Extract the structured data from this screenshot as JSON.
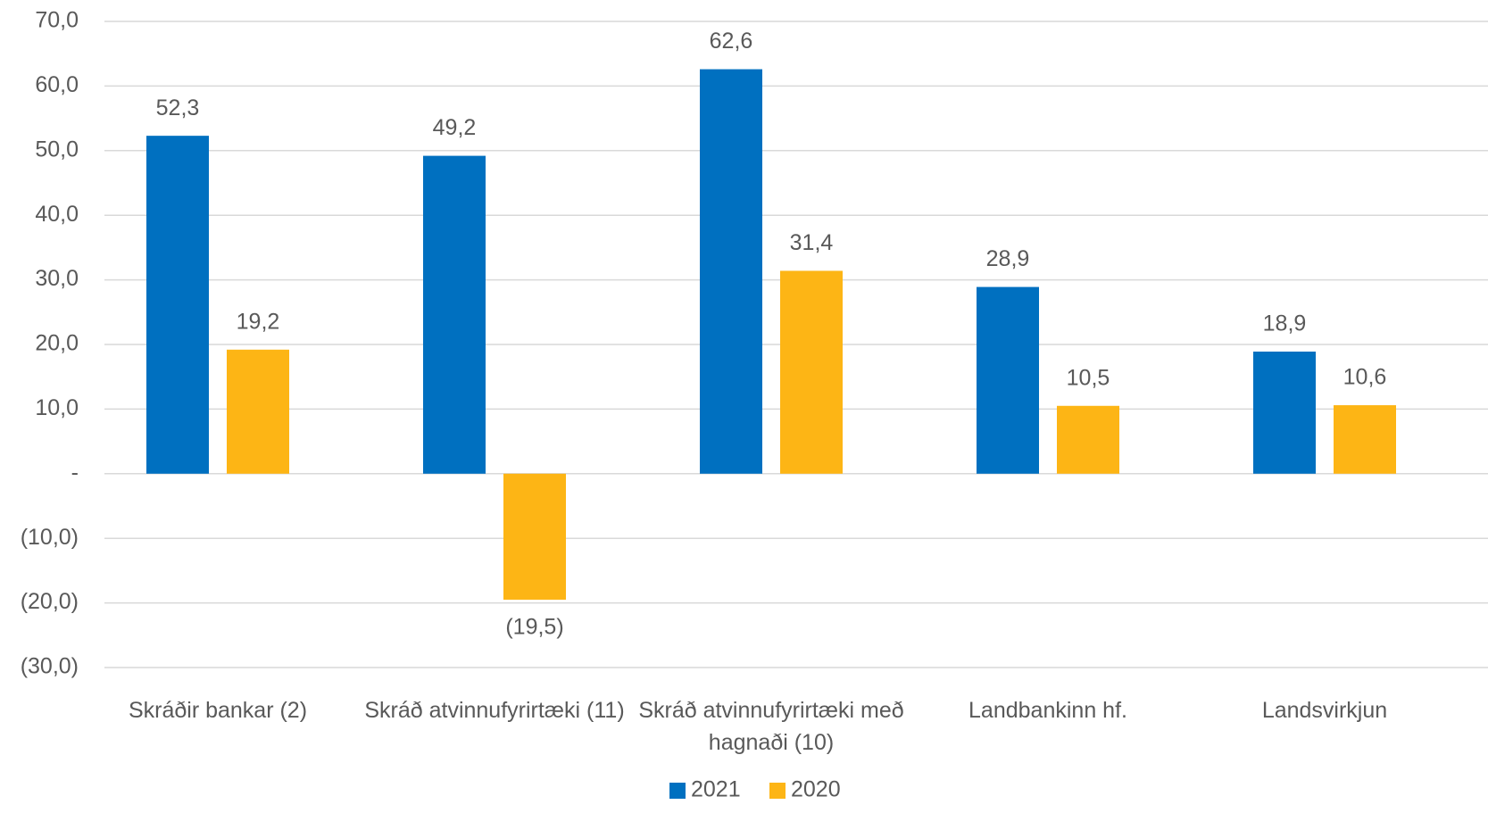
{
  "chart_data": {
    "type": "bar",
    "categories": [
      "Skráðir bankar (2)",
      "Skráð atvinnufyrirtæki (11)",
      "Skráð atvinnufyrirtæki með hagnaði (10)",
      "Landbankinn hf.",
      "Landsvirkjun"
    ],
    "series": [
      {
        "name": "2021",
        "color": "#0070C0",
        "values": [
          52.3,
          49.2,
          62.6,
          28.9,
          18.9
        ],
        "value_labels": [
          "52,3",
          "49,2",
          "62,6",
          "28,9",
          "18,9"
        ]
      },
      {
        "name": "2020",
        "color": "#FDB515",
        "values": [
          19.2,
          -19.5,
          31.4,
          10.5,
          10.6
        ],
        "value_labels": [
          "19,2",
          "(19,5)",
          "31,4",
          "10,5",
          "10,6"
        ]
      }
    ],
    "ylim": [
      -30,
      70
    ],
    "yticks": [
      {
        "value": -30,
        "label": "(30,0)"
      },
      {
        "value": -20,
        "label": "(20,0)"
      },
      {
        "value": -10,
        "label": "(10,0)"
      },
      {
        "value": 0,
        "label": "-"
      },
      {
        "value": 10,
        "label": "10,0"
      },
      {
        "value": 20,
        "label": "20,0"
      },
      {
        "value": 30,
        "label": "30,0"
      },
      {
        "value": 40,
        "label": "40,0"
      },
      {
        "value": 50,
        "label": "50,0"
      },
      {
        "value": 60,
        "label": "60,0"
      },
      {
        "value": 70,
        "label": "70,0"
      }
    ],
    "grid": true,
    "legend": "bottom"
  }
}
